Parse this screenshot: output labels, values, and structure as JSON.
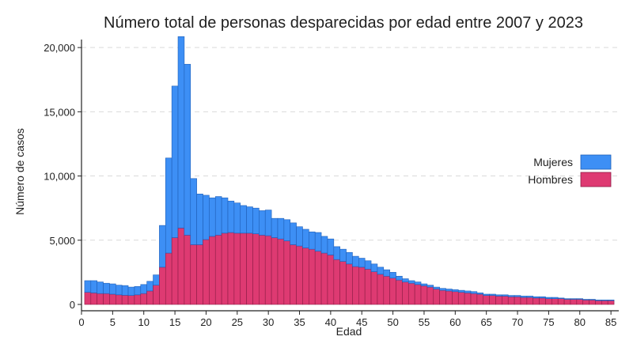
{
  "chart_data": {
    "type": "bar",
    "stacked": true,
    "title": "Número total de personas desparecidas por edad entre 2007 y 2023",
    "xlabel": "Edad",
    "ylabel": "Número de casos",
    "xlim": [
      0,
      86
    ],
    "ylim": [
      0,
      20500
    ],
    "grid": true,
    "legend_position": "right",
    "x_ticks": [
      0,
      5,
      10,
      15,
      20,
      25,
      30,
      35,
      40,
      45,
      50,
      55,
      60,
      65,
      70,
      75,
      80,
      85
    ],
    "x_tick_labels": [
      "0",
      "5",
      "10",
      "15",
      "20",
      "25",
      "30",
      "35",
      "40",
      "45",
      "50",
      "55",
      "60",
      "65",
      "70",
      "75",
      "80",
      "85"
    ],
    "y_ticks": [
      0,
      5000,
      10000,
      15000,
      20000
    ],
    "y_tick_labels": [
      "0",
      "5,000",
      "10,000",
      "15,000",
      "20,000"
    ],
    "x": [
      1,
      2,
      3,
      4,
      5,
      6,
      7,
      8,
      9,
      10,
      11,
      12,
      13,
      14,
      15,
      16,
      17,
      18,
      19,
      20,
      21,
      22,
      23,
      24,
      25,
      26,
      27,
      28,
      29,
      30,
      31,
      32,
      33,
      34,
      35,
      36,
      37,
      38,
      39,
      40,
      41,
      42,
      43,
      44,
      45,
      46,
      47,
      48,
      49,
      50,
      51,
      52,
      53,
      54,
      55,
      56,
      57,
      58,
      59,
      60,
      61,
      62,
      63,
      64,
      65,
      66,
      67,
      68,
      69,
      70,
      71,
      72,
      73,
      74,
      75,
      76,
      77,
      78,
      79,
      80,
      81,
      82,
      83,
      84,
      85
    ],
    "series": [
      {
        "name": "Hombres",
        "color": "#de3a72",
        "values": [
          950,
          900,
          850,
          850,
          800,
          750,
          720,
          700,
          750,
          850,
          1050,
          1500,
          2900,
          4000,
          5200,
          5950,
          5400,
          4650,
          4650,
          5050,
          5300,
          5400,
          5550,
          5600,
          5550,
          5550,
          5550,
          5500,
          5400,
          5350,
          5200,
          5100,
          4950,
          4650,
          4550,
          4400,
          4300,
          4150,
          4000,
          3850,
          3500,
          3350,
          3150,
          2950,
          2900,
          2750,
          2550,
          2350,
          2200,
          2050,
          1900,
          1750,
          1650,
          1550,
          1450,
          1350,
          1200,
          1100,
          1050,
          1000,
          950,
          900,
          850,
          800,
          700,
          700,
          650,
          650,
          600,
          600,
          550,
          550,
          500,
          500,
          450,
          450,
          450,
          400,
          400,
          400,
          350,
          350,
          300,
          300,
          300
        ],
        "style": "filled"
      },
      {
        "name": "Mujeres",
        "color": "#3d8ff5",
        "values": [
          900,
          950,
          900,
          800,
          800,
          750,
          750,
          650,
          650,
          700,
          750,
          800,
          3250,
          7400,
          11800,
          14900,
          13300,
          5150,
          3950,
          3450,
          3000,
          3000,
          2750,
          2450,
          2350,
          2150,
          2050,
          2000,
          1900,
          2000,
          1500,
          1600,
          1650,
          1700,
          1500,
          1450,
          1350,
          1450,
          1300,
          1250,
          1000,
          950,
          900,
          800,
          700,
          650,
          600,
          550,
          500,
          450,
          300,
          250,
          200,
          200,
          150,
          150,
          150,
          150,
          150,
          150,
          150,
          150,
          150,
          100,
          100,
          100,
          100,
          100,
          100,
          100,
          100,
          100,
          100,
          100,
          100,
          100,
          50,
          50,
          50,
          50,
          50,
          50,
          50,
          50,
          50
        ],
        "style": "stacked-on-hombres"
      }
    ]
  }
}
